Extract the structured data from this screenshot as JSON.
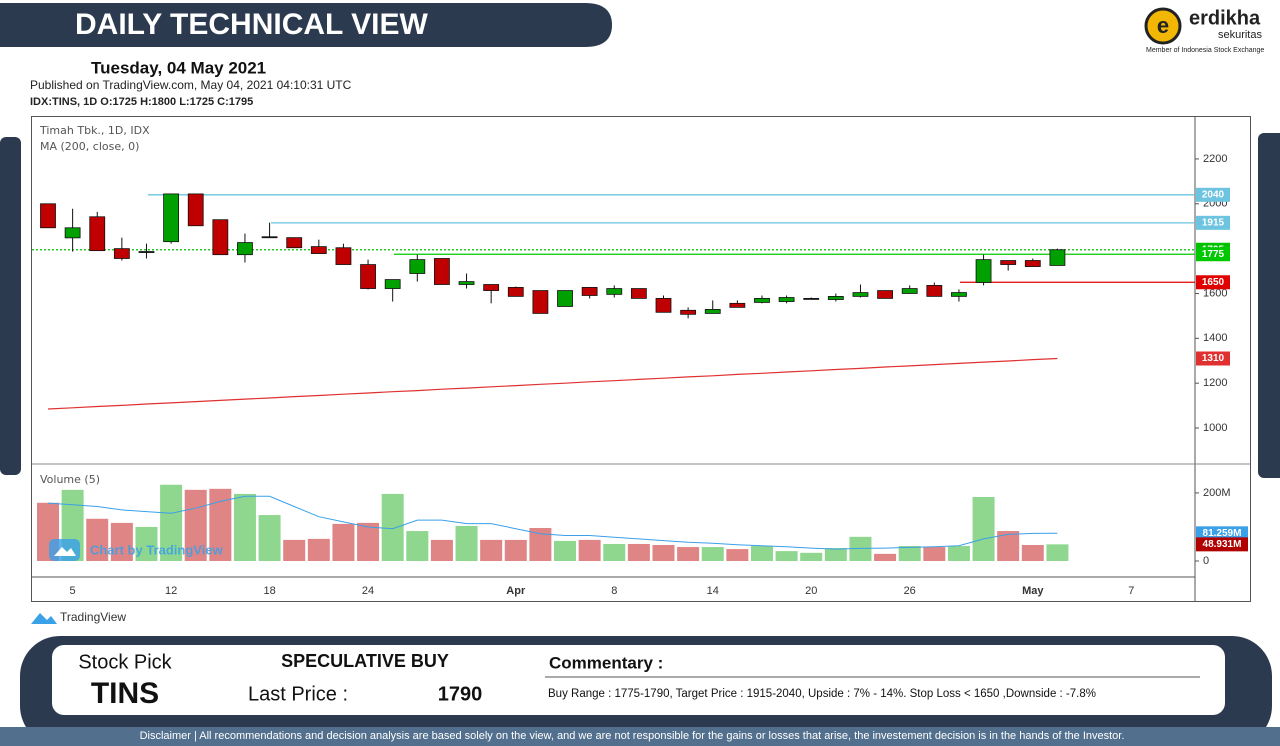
{
  "header": {
    "title": "DAILY TECHNICAL VIEW",
    "date": "Tuesday, 04 May 2021",
    "published": "Published on TradingView.com, May 04, 2021 04:10:31 UTC",
    "symbol": "IDX:TINS, 1D",
    "ohlc": [
      "O:1725",
      "H:1800",
      "L:1725",
      "C:1795"
    ]
  },
  "logo": {
    "name": "erdikha",
    "sub": "sekuritas",
    "member": "Member of Indonesia Stock Exchange"
  },
  "chart_data": {
    "type": "candlestick",
    "title": "Timah Tbk., 1D, IDX",
    "categories": [
      null,
      "5",
      null,
      null,
      null,
      "12",
      null,
      null,
      null,
      "18",
      null,
      null,
      null,
      "24",
      null,
      null,
      null,
      null,
      null,
      "Apr",
      null,
      null,
      null,
      "8",
      null,
      null,
      null,
      "14",
      null,
      null,
      null,
      "20",
      null,
      null,
      null,
      "26",
      null,
      null,
      null,
      null,
      "May",
      null,
      null,
      null,
      "7"
    ],
    "open": [
      2000,
      1848,
      1942,
      1800,
      1787,
      1831,
      2044,
      1929,
      1773,
      1853,
      1849,
      1809,
      1804,
      1729,
      1622,
      1689,
      1756,
      1640,
      1640,
      1627,
      1613,
      1542,
      1627,
      1596,
      1622,
      1578,
      1525,
      1511,
      1556,
      1560,
      1564,
      1578,
      1573,
      1587,
      1613,
      1600,
      1636,
      1587,
      1649,
      1747,
      1747,
      1725,
      null,
      null,
      null
    ],
    "high": [
      2000,
      1978,
      1964,
      1849,
      1822,
      2044,
      2044,
      1929,
      1867,
      1916,
      1849,
      1840,
      1822,
      1751,
      1662,
      1773,
      1756,
      1689,
      1640,
      1631,
      1613,
      1613,
      1627,
      1636,
      1622,
      1591,
      1538,
      1569,
      1569,
      1591,
      1591,
      1582,
      1600,
      1640,
      1613,
      1636,
      1649,
      1618,
      1773,
      1747,
      1756,
      1800,
      null,
      null,
      null
    ],
    "low": [
      1893,
      1787,
      1791,
      1747,
      1756,
      1822,
      1902,
      1773,
      1738,
      1849,
      1804,
      1778,
      1729,
      1618,
      1564,
      1653,
      1640,
      1622,
      1556,
      1587,
      1511,
      1542,
      1578,
      1582,
      1578,
      1516,
      1489,
      1511,
      1538,
      1556,
      1556,
      1573,
      1564,
      1582,
      1578,
      1600,
      1587,
      1564,
      1636,
      1702,
      1720,
      1725,
      null,
      null,
      null
    ],
    "close": [
      1893,
      1893,
      1791,
      1756,
      1787,
      2044,
      1902,
      1773,
      1827,
      1853,
      1804,
      1778,
      1729,
      1622,
      1662,
      1751,
      1640,
      1653,
      1613,
      1587,
      1511,
      1613,
      1591,
      1622,
      1578,
      1516,
      1507,
      1529,
      1538,
      1578,
      1582,
      1578,
      1587,
      1604,
      1578,
      1622,
      1587,
      1604,
      1751,
      1729,
      1720,
      1795,
      null,
      null,
      null
    ],
    "up_color": "#00a000",
    "down_color": "#c00000",
    "ylim": [
      844,
      2387
    ],
    "yticks": [
      1000,
      1200,
      1400,
      1600,
      2000,
      2200
    ],
    "ma": {
      "name": "MA (200, close, 0)",
      "color": "#e03030",
      "values": [
        1085,
        1090,
        1096,
        1101,
        1107,
        1112,
        1118,
        1123,
        1129,
        1134,
        1140,
        1145,
        1151,
        1156,
        1162,
        1167,
        1173,
        1178,
        1184,
        1189,
        1195,
        1200,
        1206,
        1211,
        1217,
        1222,
        1228,
        1233,
        1239,
        1244,
        1250,
        1255,
        1261,
        1266,
        1272,
        1277,
        1283,
        1288,
        1294,
        1299,
        1305,
        1310,
        null,
        null,
        null
      ]
    },
    "levels": [
      {
        "value": 2040,
        "color": "#6cc4e0"
      },
      {
        "value": 1915,
        "color": "#6cc4e0"
      },
      {
        "value": 1795,
        "color": "#00c000",
        "dash": true
      },
      {
        "value": 1775,
        "color": "#00c800"
      },
      {
        "value": 1650,
        "color": "#e00000"
      }
    ],
    "volume": {
      "name": "Volume (5)",
      "up_color": "#8fd68f",
      "down_color": "#e08585",
      "label_color": "#b00000",
      "values": [
        171,
        209,
        124,
        112,
        100,
        224,
        209,
        212,
        197,
        135,
        62,
        65,
        109,
        112,
        197,
        88,
        62,
        103,
        62,
        62,
        97,
        59,
        62,
        50,
        50,
        47,
        41,
        41,
        35,
        44,
        29,
        24,
        38,
        71,
        21,
        44,
        41,
        44,
        188,
        88,
        47,
        48.931,
        null,
        null,
        null
      ],
      "value_labels": [
        null,
        null,
        null,
        null,
        null,
        null,
        null,
        null,
        null,
        null,
        null,
        null,
        null,
        null,
        null,
        null,
        null,
        null,
        null,
        null,
        null,
        null,
        null,
        null,
        null,
        null,
        null,
        null,
        null,
        null,
        null,
        null,
        null,
        null,
        null,
        null,
        null,
        null,
        null,
        null,
        null,
        "48.931M",
        null,
        null,
        null
      ],
      "ylim": [
        -47,
        282
      ],
      "yticks": [
        0,
        {
          "value": 200,
          "label": "200M"
        }
      ],
      "ma": {
        "color": "#3aa0e8",
        "values": [
          170,
          165,
          160,
          150,
          145,
          140,
          155,
          175,
          190,
          190,
          160,
          130,
          115,
          100,
          95,
          120,
          120,
          110,
          110,
          95,
          80,
          75,
          75,
          70,
          65,
          60,
          55,
          52,
          48,
          45,
          42,
          38,
          35,
          37,
          38,
          40,
          42,
          45,
          65,
          78,
          81,
          81.259,
          null,
          null,
          null
        ],
        "value_labels": [
          null,
          null,
          null,
          null,
          null,
          null,
          null,
          null,
          null,
          null,
          null,
          null,
          null,
          null,
          null,
          null,
          null,
          null,
          null,
          null,
          null,
          null,
          null,
          null,
          null,
          null,
          null,
          null,
          null,
          null,
          null,
          null,
          null,
          null,
          null,
          null,
          null,
          null,
          null,
          null,
          null,
          "81.259M",
          null,
          null,
          null
        ]
      }
    }
  },
  "watermark": "Chart by TradingView",
  "brand": "TradingView",
  "pick": {
    "label": "Stock Pick",
    "ticker": "TINS",
    "rating": "SPECULATIVE BUY",
    "price_label": "Last Price :",
    "price": 1790,
    "commentary_title": "Commentary :",
    "commentary": "Buy Range : 1775-1790, Target Price : 1915-2040, Upside : 7% - 14%. Stop Loss < 1650 ,Downside : -7.8%"
  },
  "disclaimer": "Disclaimer | All recommendations and decision analysis are based solely on the view, and we are not responsible for the gains or losses that arise, the investement decision is in the hands of the Investor."
}
